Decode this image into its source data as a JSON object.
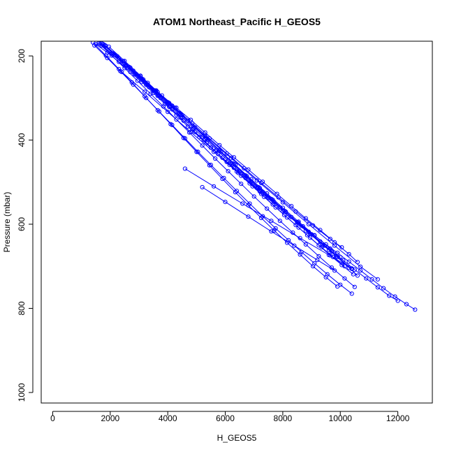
{
  "chart_data": {
    "type": "line",
    "title": "ATOM1 Northeast_Pacific H_GEOS5",
    "xlabel": "H_GEOS5",
    "ylabel": "Pressure (mbar)",
    "xlim": [
      -400,
      13200
    ],
    "ylim": [
      1025,
      165
    ],
    "y_reversed": true,
    "x_ticks": [
      0,
      2000,
      4000,
      6000,
      8000,
      10000,
      12000
    ],
    "x_tick_labels": [
      "0",
      "2000",
      "4000",
      "6000",
      "8000",
      "10000",
      "12000"
    ],
    "y_ticks": [
      200,
      400,
      600,
      800,
      1000
    ],
    "y_tick_labels": [
      "200",
      "400",
      "600",
      "800",
      "1000"
    ],
    "grid": false,
    "legend": "none",
    "marker": "open-circle",
    "series_color": "#0000ff",
    "series": [
      {
        "x": [
          1500,
          1900,
          2300,
          2700,
          3100,
          3500,
          3900,
          4300,
          4700,
          5100,
          5500,
          5900,
          6300,
          6700,
          7100,
          7500,
          7900,
          8300,
          8700,
          9100,
          9500,
          9900,
          10300,
          10700,
          11100,
          11500,
          11900,
          12300,
          12600
        ],
        "y": [
          172,
          192,
          214,
          238,
          262,
          288,
          314,
          340,
          368,
          393,
          418,
          442,
          466,
          490,
          514,
          537,
          560,
          583,
          605,
          627,
          648,
          668,
          689,
          710,
          731,
          752,
          772,
          790,
          803
        ]
      },
      {
        "x": [
          1700,
          2100,
          2500,
          2900,
          3300,
          3700,
          4100,
          4500,
          4900,
          5300,
          5700,
          6100,
          6500,
          6900,
          7300,
          7700,
          8100,
          8500,
          8900,
          9300,
          9700,
          10100,
          10500,
          10900,
          11300,
          11700,
          12000
        ],
        "y": [
          170,
          194,
          218,
          243,
          268,
          294,
          320,
          346,
          372,
          398,
          423,
          449,
          474,
          499,
          523,
          547,
          571,
          595,
          618,
          641,
          664,
          686,
          708,
          729,
          750,
          770,
          782
        ]
      },
      {
        "x": [
          1650,
          2050,
          2450,
          2850,
          3250,
          3650,
          4050,
          4450,
          4850,
          5250,
          5650,
          6050,
          6450,
          6850,
          7250,
          7650,
          8050,
          8450,
          8850,
          9250,
          9650,
          10050,
          10450
        ],
        "y": [
          171,
          194,
          219,
          244,
          269,
          295,
          321,
          347,
          374,
          400,
          426,
          452,
          478,
          503,
          528,
          553,
          578,
          602,
          626,
          650,
          674,
          697,
          719
        ]
      },
      {
        "x": [
          1800,
          2300,
          2800,
          3300,
          3800,
          4300,
          4800,
          5300,
          5800,
          6300,
          6800,
          7300,
          7800,
          8300,
          8800,
          9300,
          9800,
          10300,
          10600
        ],
        "y": [
          176,
          205,
          235,
          264,
          294,
          323,
          352,
          382,
          412,
          441,
          470,
          499,
          528,
          557,
          586,
          614,
          643,
          671,
          690
        ]
      },
      {
        "x": [
          1750,
          2200,
          2650,
          3100,
          3550,
          4000,
          4450,
          4900,
          5350,
          5800,
          6250,
          6700,
          7150,
          7600,
          8050,
          8500,
          8950,
          9400,
          9850,
          10300,
          10600
        ],
        "y": [
          172,
          199,
          226,
          254,
          282,
          310,
          339,
          368,
          397,
          426,
          455,
          484,
          512,
          540,
          568,
          596,
          623,
          650,
          676,
          703,
          722
        ]
      },
      {
        "x": [
          1450,
          1900,
          2350,
          2800,
          3250,
          3700,
          4150,
          4600,
          5050,
          5500,
          5950,
          6400,
          6850,
          7300,
          7750,
          8200,
          8650,
          9100,
          9550,
          10000,
          10400
        ],
        "y": [
          175,
          205,
          236,
          268,
          300,
          332,
          364,
          396,
          428,
          459,
          490,
          521,
          551,
          581,
          610,
          638,
          666,
          693,
          719,
          744,
          765
        ]
      },
      {
        "x": [
          1400,
          1850,
          2300,
          2750,
          3200,
          3650,
          4100,
          4550,
          5000,
          5450,
          5900,
          6350,
          6800,
          7250,
          7700,
          8150,
          8600,
          9050,
          9500,
          9900
        ],
        "y": [
          168,
          199,
          231,
          263,
          296,
          329,
          362,
          395,
          428,
          460,
          492,
          524,
          555,
          585,
          615,
          644,
          672,
          700,
          726,
          748
        ]
      },
      {
        "x": [
          1750,
          2150,
          2550,
          2950,
          3350,
          3750,
          4150,
          4550,
          4950,
          5350,
          5750,
          6150,
          6550,
          6950,
          7350,
          7750,
          8150,
          8550,
          8950,
          9350,
          9750,
          10150
        ],
        "y": [
          172,
          197,
          222,
          248,
          274,
          300,
          327,
          354,
          381,
          407,
          433,
          459,
          485,
          510,
          535,
          560,
          584,
          608,
          632,
          655,
          678,
          700
        ]
      },
      {
        "x": [
          1850,
          2450,
          3050,
          3650,
          4250,
          4850,
          5450,
          6050,
          6650,
          7250,
          7850,
          8450,
          9050,
          9650,
          10050
        ],
        "y": [
          176,
          212,
          249,
          286,
          323,
          360,
          396,
          432,
          467,
          502,
          536,
          570,
          603,
          635,
          655
        ]
      },
      {
        "x": [
          1950,
          2500,
          3050,
          3600,
          4150,
          4700,
          5250,
          5800,
          6350,
          6900,
          7450,
          8000,
          8550,
          9100,
          9650,
          10000
        ],
        "y": [
          178,
          212,
          247,
          282,
          318,
          354,
          389,
          424,
          459,
          493,
          527,
          561,
          594,
          626,
          658,
          678
        ]
      },
      {
        "x": [
          1800,
          2250,
          2700,
          3150,
          3600,
          4050,
          4500,
          4950,
          5400,
          5850,
          6300,
          6750,
          7200,
          7650,
          8100,
          8550,
          9000,
          9450,
          9900
        ],
        "y": [
          174,
          201,
          228,
          256,
          284,
          312,
          341,
          370,
          399,
          428,
          457,
          486,
          514,
          542,
          570,
          597,
          624,
          651,
          678
        ]
      },
      {
        "x": [
          1600,
          2050,
          2500,
          2950,
          3400,
          3850,
          4300,
          4750,
          5200,
          5650,
          6100,
          6550,
          7000,
          7450,
          7900,
          8350,
          8800,
          9250,
          9700,
          10150,
          10500
        ],
        "y": [
          170,
          199,
          229,
          259,
          290,
          320,
          351,
          382,
          413,
          444,
          474,
          504,
          534,
          563,
          592,
          620,
          648,
          676,
          703,
          729,
          749
        ]
      },
      {
        "x": [
          5200,
          6000,
          6800,
          7600,
          8400,
          9200,
          9800
        ],
        "y": [
          512,
          547,
          582,
          617,
          651,
          685,
          710
        ]
      },
      {
        "x": [
          4600,
          5600,
          6600,
          7600,
          8600,
          9600,
          10400
        ],
        "y": [
          468,
          510,
          551,
          592,
          633,
          673,
          705
        ]
      },
      {
        "x": [
          1700,
          2600,
          3500,
          4400,
          5300,
          6200,
          7100,
          8000,
          8900,
          9800,
          10700,
          11300
        ],
        "y": [
          175,
          228,
          282,
          336,
          390,
          443,
          496,
          548,
          600,
          651,
          701,
          731
        ]
      },
      {
        "x": [
          2400,
          3200,
          4000,
          4800,
          5600,
          6400,
          7200,
          8000,
          8800,
          9600,
          10400
        ],
        "y": [
          238,
          285,
          333,
          381,
          428,
          475,
          522,
          569,
          615,
          661,
          706
        ]
      }
    ]
  }
}
